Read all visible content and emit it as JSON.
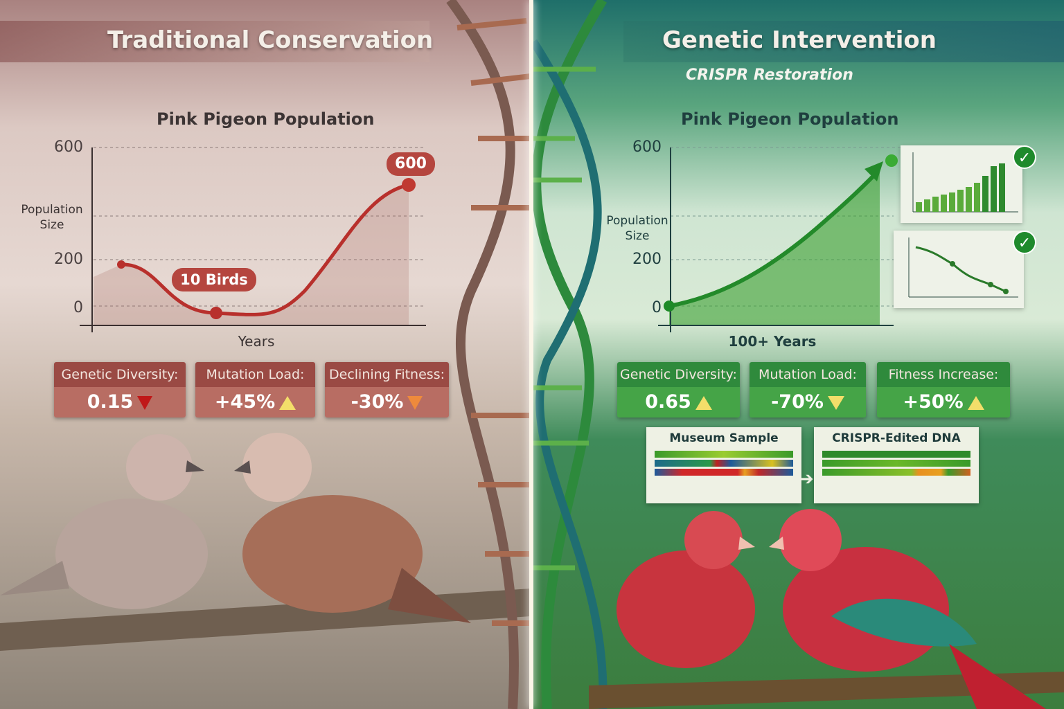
{
  "left": {
    "title": "Traditional Conservation",
    "chart": {
      "title": "Pink Pigeon Population",
      "ylabel": "Population Size",
      "xlabel": "Years",
      "yticks": [
        "600",
        "200",
        "0"
      ],
      "annotations": {
        "low": "10 Birds",
        "high": "600"
      }
    },
    "metrics": [
      {
        "label": "Genetic Diversity:",
        "value": "0.15",
        "trend": "down"
      },
      {
        "label": "Mutation Load:",
        "value": "+45%",
        "trend": "up"
      },
      {
        "label": "Declining Fitness:",
        "value": "-30%",
        "trend": "down"
      }
    ]
  },
  "right": {
    "title": "Genetic Intervention",
    "subtitle": "CRISPR Restoration",
    "chart": {
      "title": "Pink Pigeon Population",
      "ylabel": "Population Size",
      "xlabel": "100+ Years",
      "yticks": [
        "600",
        "200",
        "0"
      ]
    },
    "metrics": [
      {
        "label": "Genetic Diversity:",
        "value": "0.65",
        "trend": "up"
      },
      {
        "label": "Mutation Load:",
        "value": "-70%",
        "trend": "down"
      },
      {
        "label": "Fitness Increase:",
        "value": "+50%",
        "trend": "up"
      }
    ],
    "dna": {
      "museum": "Museum Sample",
      "edited": "CRISPR-Edited DNA"
    }
  },
  "colors": {
    "left_accent": "#b5463f",
    "right_accent": "#2f8a3c"
  }
}
